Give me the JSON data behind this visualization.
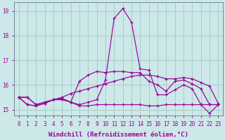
{
  "bg_color": "#cce8e8",
  "grid_color": "#aacccc",
  "line_color": "#990099",
  "xlim": [
    -0.5,
    23.5
  ],
  "ylim": [
    14.75,
    19.35
  ],
  "yticks": [
    15,
    16,
    17,
    18,
    19
  ],
  "xticks": [
    0,
    1,
    2,
    3,
    4,
    5,
    6,
    7,
    8,
    9,
    10,
    11,
    12,
    13,
    14,
    15,
    16,
    17,
    18,
    19,
    20,
    21,
    22,
    23
  ],
  "xlabel": "Windchill (Refroidissement éolien,°C)",
  "line1": [
    15.5,
    15.5,
    15.2,
    15.3,
    15.4,
    15.4,
    15.3,
    15.15,
    15.15,
    15.2,
    15.2,
    15.2,
    15.2,
    15.2,
    15.2,
    15.15,
    15.15,
    15.2,
    15.2,
    15.2,
    15.2,
    15.2,
    15.2,
    15.2
  ],
  "line2": [
    15.5,
    15.2,
    15.15,
    15.25,
    15.4,
    15.45,
    15.3,
    15.2,
    15.3,
    15.4,
    16.2,
    18.7,
    19.1,
    18.55,
    16.65,
    16.6,
    15.6,
    15.6,
    15.8,
    16.0,
    15.85,
    15.2,
    14.85,
    15.2
  ],
  "line3": [
    15.5,
    15.2,
    15.15,
    15.25,
    15.4,
    15.45,
    15.3,
    16.15,
    16.4,
    16.55,
    16.5,
    16.55,
    16.55,
    16.5,
    16.5,
    16.15,
    16.0,
    15.75,
    16.15,
    16.2,
    16.05,
    15.85,
    15.2,
    15.2
  ],
  "line4": [
    15.5,
    15.5,
    15.2,
    15.3,
    15.4,
    15.5,
    15.65,
    15.75,
    15.85,
    15.95,
    16.05,
    16.15,
    16.25,
    16.35,
    16.4,
    16.4,
    16.35,
    16.25,
    16.25,
    16.3,
    16.25,
    16.1,
    15.95,
    15.25
  ],
  "tick_fontsize": 5.5,
  "xlabel_fontsize": 6.5
}
